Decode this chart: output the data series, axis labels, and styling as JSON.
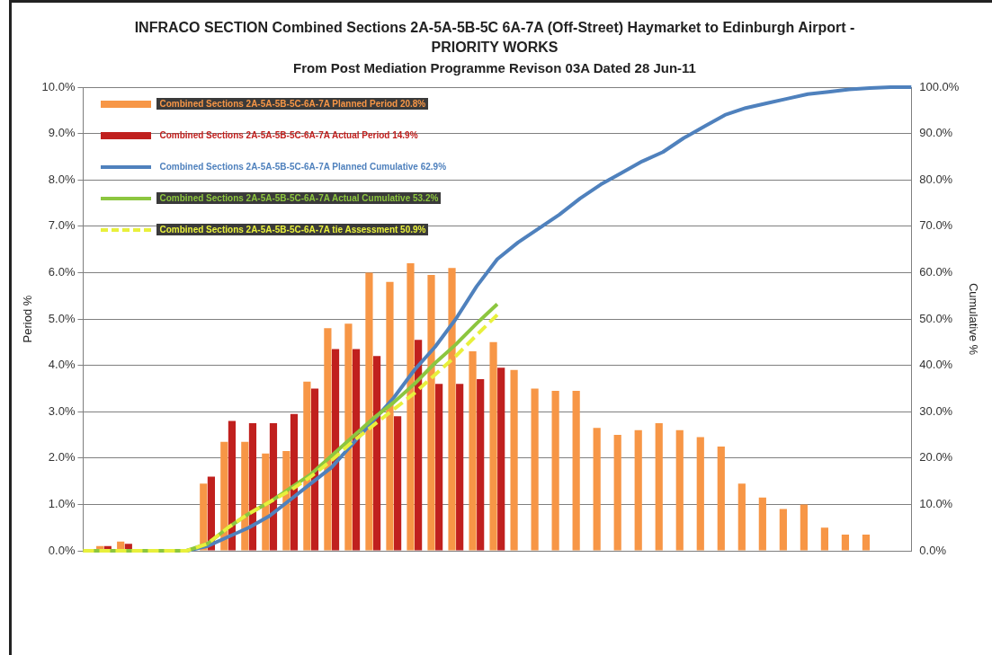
{
  "chart_data": {
    "type": "bar",
    "title": "INFRACO SECTION Combined Sections 2A-5A-5B-5C 6A-7A (Off-Street) Haymarket to Edinburgh Airport - PRIORITY WORKS",
    "subtitle": "From Post Mediation Programme Revison 03A Dated 28 Jun-11",
    "ylabel": "Period %",
    "y2label": "Cumulative %",
    "categories": [
      null,
      null,
      null,
      null,
      null,
      null,
      null,
      null,
      null,
      null,
      null,
      null,
      null,
      null,
      null,
      null,
      null,
      null,
      null,
      null,
      null,
      null,
      null,
      null,
      null,
      null,
      null,
      null,
      null,
      null,
      null,
      null,
      null,
      null,
      null,
      null,
      null,
      null,
      null,
      null,
      null
    ],
    "series": [
      {
        "name": "Combined Sections 2A-5A-5B-5C-6A-7A  Planned Period 20.8%",
        "color": "#f79646",
        "values": [
          null,
          0.1,
          0.2,
          0,
          0,
          0,
          1.45,
          2.35,
          2.35,
          2.1,
          2.15,
          3.65,
          4.8,
          4.9,
          6.0,
          5.8,
          6.2,
          5.95,
          6.1,
          4.3,
          4.5,
          3.9,
          3.5,
          3.45,
          3.45,
          2.65,
          2.5,
          2.6,
          2.75,
          2.6,
          2.45,
          2.25,
          1.45,
          1.15,
          0.9,
          1.0,
          0.5,
          0.35,
          0.35,
          null,
          null
        ]
      },
      {
        "name": "Combined Sections 2A-5A-5B-5C-6A-7A  Actual Period 14.9%",
        "color": "#c0201e",
        "values": [
          null,
          0.1,
          0.15,
          0,
          0,
          0,
          1.6,
          2.8,
          2.75,
          2.75,
          2.95,
          3.5,
          4.35,
          4.35,
          4.2,
          2.9,
          4.55,
          3.6,
          3.6,
          3.7,
          3.95,
          null,
          null,
          null,
          null,
          null,
          null,
          null,
          null,
          null,
          null,
          null,
          null,
          null,
          null,
          null,
          null,
          null,
          null,
          null,
          null
        ]
      },
      {
        "name": "Combined Sections 2A-5A-5B-5C-6A-7A  Planned Cumulative 62.9%",
        "type": "line",
        "axis": "y2",
        "color": "#4f81bd",
        "line_style": "solid",
        "values": [
          null,
          null,
          null,
          null,
          null,
          0,
          1,
          3,
          5,
          7.5,
          11,
          14.5,
          18,
          23,
          28,
          33,
          39,
          44,
          50,
          57,
          62.9,
          66.5,
          69.5,
          72.5,
          76,
          79,
          81.5,
          84,
          86,
          89,
          91.5,
          94,
          95.5,
          96.5,
          97.5,
          98.5,
          99,
          99.5,
          99.8,
          100,
          100
        ]
      },
      {
        "name": "Combined Sections 2A-5A-5B-5C-6A-7A  Actual Cumulative 53.2%",
        "type": "line",
        "axis": "y2",
        "color": "#8cc63f",
        "line_style": "solid",
        "values": [
          0,
          0,
          0,
          0,
          0,
          0,
          1.5,
          5,
          8,
          10.5,
          13.5,
          16.5,
          20.5,
          24.5,
          28.5,
          32,
          36,
          40.5,
          44.5,
          49,
          53.2,
          null,
          null,
          null,
          null,
          null,
          null,
          null,
          null,
          null,
          null,
          null,
          null,
          null,
          null,
          null,
          null,
          null,
          null,
          null,
          null
        ]
      },
      {
        "name": "Combined Sections 2A-5A-5B-5C-6A-7A  tie Assessment 50.9%",
        "type": "line",
        "axis": "y2",
        "color": "#e8f03c",
        "line_style": "dashed",
        "values": [
          0,
          0,
          0,
          0,
          0,
          0,
          1.5,
          5,
          8,
          10.5,
          13,
          16,
          19.5,
          23.5,
          27,
          30.5,
          34,
          38,
          42,
          46.5,
          50.9,
          null,
          null,
          null,
          null,
          null,
          null,
          null,
          null,
          null,
          null,
          null,
          null,
          null,
          null,
          null,
          null,
          null,
          null,
          null,
          null
        ]
      }
    ],
    "ylim": [
      0,
      10
    ],
    "yticks": [
      {
        "value": 0,
        "label": "0.0%"
      },
      {
        "value": 1,
        "label": "1.0%"
      },
      {
        "value": 2,
        "label": "2.0%"
      },
      {
        "value": 3,
        "label": "3.0%"
      },
      {
        "value": 4,
        "label": "4.0%"
      },
      {
        "value": 5,
        "label": "5.0%"
      },
      {
        "value": 6,
        "label": "6.0%"
      },
      {
        "value": 7,
        "label": "7.0%"
      },
      {
        "value": 8,
        "label": "8.0%"
      },
      {
        "value": 9,
        "label": "9.0%"
      },
      {
        "value": 10,
        "label": "10.0%"
      }
    ],
    "y2lim": [
      0,
      100
    ],
    "y2ticks": [
      {
        "value": 0,
        "label": "0.0%"
      },
      {
        "value": 10,
        "label": "10.0%"
      },
      {
        "value": 20,
        "label": "20.0%"
      },
      {
        "value": 30,
        "label": "30.0%"
      },
      {
        "value": 40,
        "label": "40.0%"
      },
      {
        "value": 50,
        "label": "50.0%"
      },
      {
        "value": 60,
        "label": "60.0%"
      },
      {
        "value": 70,
        "label": "70.0%"
      },
      {
        "value": 80,
        "label": "80.0%"
      },
      {
        "value": 90,
        "label": "90.0%"
      },
      {
        "value": 100,
        "label": "100.0%"
      }
    ],
    "tick_labels": "y",
    "grid": "y",
    "legend": "top left",
    "marker": "none"
  }
}
